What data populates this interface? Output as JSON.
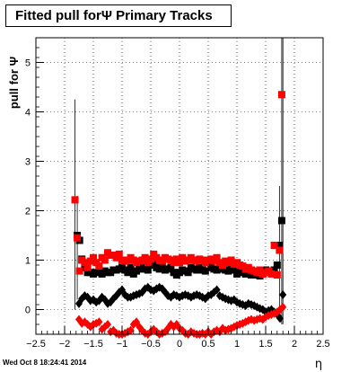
{
  "chart_data": {
    "type": "scatter",
    "title": "Fitted pull forΨ   Primary Tracks",
    "xlabel": "η",
    "ylabel": "pull for Ψ",
    "xlim": [
      -2.5,
      2.5
    ],
    "ylim": [
      -0.5,
      5.5
    ],
    "x_ticks": [
      -2.5,
      -2,
      -1.5,
      -1,
      -0.5,
      0,
      0.5,
      1,
      1.5,
      2,
      2.5
    ],
    "x_tick_labels": [
      "−2.5",
      "−2",
      "−1.5",
      "−1",
      "−0.5",
      "0",
      "0.5",
      "1",
      "1.5",
      "2",
      "2.5"
    ],
    "y_ticks": [
      0,
      1,
      2,
      3,
      4,
      5
    ],
    "y_tick_labels": [
      "0",
      "1",
      "2",
      "3",
      "4",
      "5"
    ],
    "grid": true,
    "series": [
      {
        "color": "#000000",
        "marker": "square",
        "points": [
          [
            -1.78,
            1.5
          ],
          [
            -1.74,
            1.4
          ],
          [
            -1.7,
            1.02
          ],
          [
            -1.65,
            0.85
          ],
          [
            -1.6,
            0.75
          ],
          [
            -1.55,
            0.75
          ],
          [
            -1.5,
            0.72
          ],
          [
            -1.45,
            0.75
          ],
          [
            -1.4,
            0.8
          ],
          [
            -1.35,
            0.72
          ],
          [
            -1.3,
            0.78
          ],
          [
            -1.25,
            0.75
          ],
          [
            -1.2,
            0.75
          ],
          [
            -1.15,
            0.8
          ],
          [
            -1.1,
            0.8
          ],
          [
            -1.05,
            0.82
          ],
          [
            -1.0,
            0.85
          ],
          [
            -0.95,
            0.8
          ],
          [
            -0.9,
            0.75
          ],
          [
            -0.85,
            0.85
          ],
          [
            -0.8,
            0.72
          ],
          [
            -0.75,
            0.78
          ],
          [
            -0.7,
            0.82
          ],
          [
            -0.65,
            0.85
          ],
          [
            -0.6,
            0.82
          ],
          [
            -0.55,
            0.8
          ],
          [
            -0.5,
            0.9
          ],
          [
            -0.45,
            0.92
          ],
          [
            -0.4,
            0.85
          ],
          [
            -0.35,
            0.82
          ],
          [
            -0.3,
            0.88
          ],
          [
            -0.25,
            0.8
          ],
          [
            -0.2,
            0.82
          ],
          [
            -0.15,
            0.85
          ],
          [
            -0.1,
            0.75
          ],
          [
            -0.05,
            0.7
          ],
          [
            0.0,
            0.75
          ],
          [
            0.05,
            0.8
          ],
          [
            0.1,
            0.78
          ],
          [
            0.15,
            0.75
          ],
          [
            0.2,
            0.85
          ],
          [
            0.25,
            0.82
          ],
          [
            0.3,
            0.8
          ],
          [
            0.35,
            0.85
          ],
          [
            0.4,
            0.8
          ],
          [
            0.45,
            0.78
          ],
          [
            0.5,
            0.95
          ],
          [
            0.55,
            0.85
          ],
          [
            0.6,
            0.82
          ],
          [
            0.65,
            0.8
          ],
          [
            0.7,
            0.85
          ],
          [
            0.75,
            0.82
          ],
          [
            0.8,
            0.8
          ],
          [
            0.85,
            0.78
          ],
          [
            0.9,
            0.85
          ],
          [
            0.95,
            0.8
          ],
          [
            1.0,
            0.72
          ],
          [
            1.05,
            0.8
          ],
          [
            1.1,
            0.75
          ],
          [
            1.15,
            0.72
          ],
          [
            1.2,
            0.78
          ],
          [
            1.25,
            0.7
          ],
          [
            1.3,
            0.72
          ],
          [
            1.35,
            0.7
          ],
          [
            1.4,
            0.68
          ],
          [
            1.45,
            0.72
          ],
          [
            1.5,
            0.8
          ],
          [
            1.55,
            0.78
          ],
          [
            1.6,
            0.75
          ],
          [
            1.65,
            0.8
          ],
          [
            1.7,
            0.9
          ],
          [
            1.74,
            1.3
          ],
          [
            1.78,
            1.8
          ]
        ]
      },
      {
        "color": "#000000",
        "marker": "diamond",
        "points": [
          [
            -1.75,
            0.12
          ],
          [
            -1.7,
            0.22
          ],
          [
            -1.65,
            0.28
          ],
          [
            -1.6,
            0.25
          ],
          [
            -1.55,
            0.18
          ],
          [
            -1.5,
            0.2
          ],
          [
            -1.45,
            0.15
          ],
          [
            -1.4,
            0.18
          ],
          [
            -1.35,
            0.25
          ],
          [
            -1.3,
            0.2
          ],
          [
            -1.25,
            0.12
          ],
          [
            -1.2,
            0.15
          ],
          [
            -1.15,
            0.22
          ],
          [
            -1.1,
            0.28
          ],
          [
            -1.05,
            0.35
          ],
          [
            -1.0,
            0.4
          ],
          [
            -0.95,
            0.3
          ],
          [
            -0.9,
            0.25
          ],
          [
            -0.85,
            0.25
          ],
          [
            -0.8,
            0.28
          ],
          [
            -0.75,
            0.3
          ],
          [
            -0.7,
            0.32
          ],
          [
            -0.65,
            0.35
          ],
          [
            -0.6,
            0.42
          ],
          [
            -0.55,
            0.45
          ],
          [
            -0.5,
            0.4
          ],
          [
            -0.45,
            0.38
          ],
          [
            -0.4,
            0.42
          ],
          [
            -0.35,
            0.45
          ],
          [
            -0.3,
            0.42
          ],
          [
            -0.25,
            0.35
          ],
          [
            -0.2,
            0.28
          ],
          [
            -0.15,
            0.25
          ],
          [
            -0.1,
            0.3
          ],
          [
            -0.05,
            0.28
          ],
          [
            0.0,
            0.25
          ],
          [
            0.05,
            0.28
          ],
          [
            0.1,
            0.3
          ],
          [
            0.15,
            0.28
          ],
          [
            0.2,
            0.25
          ],
          [
            0.25,
            0.28
          ],
          [
            0.3,
            0.3
          ],
          [
            0.35,
            0.28
          ],
          [
            0.4,
            0.25
          ],
          [
            0.45,
            0.22
          ],
          [
            0.5,
            0.28
          ],
          [
            0.55,
            0.3
          ],
          [
            0.6,
            0.35
          ],
          [
            0.65,
            0.4
          ],
          [
            0.7,
            0.28
          ],
          [
            0.75,
            0.25
          ],
          [
            0.8,
            0.22
          ],
          [
            0.85,
            0.2
          ],
          [
            0.9,
            0.18
          ],
          [
            0.95,
            0.2
          ],
          [
            1.0,
            0.15
          ],
          [
            1.05,
            0.12
          ],
          [
            1.1,
            0.1
          ],
          [
            1.15,
            0.08
          ],
          [
            1.2,
            0.12
          ],
          [
            1.25,
            0.1
          ],
          [
            1.3,
            0.08
          ],
          [
            1.35,
            0.05
          ],
          [
            1.4,
            0.02
          ],
          [
            1.45,
            0.0
          ],
          [
            1.5,
            -0.05
          ],
          [
            1.55,
            -0.02
          ],
          [
            1.6,
            0.0
          ],
          [
            1.65,
            -0.05
          ],
          [
            1.7,
            -0.1
          ],
          [
            1.75,
            -0.18
          ],
          [
            1.8,
            0.3
          ]
        ]
      },
      {
        "color": "#ff0000",
        "marker": "square",
        "points": [
          [
            -1.82,
            2.22
          ],
          [
            -1.78,
            1.45
          ],
          [
            -1.74,
            0.78
          ],
          [
            -1.7,
            1.0
          ],
          [
            -1.65,
            0.95
          ],
          [
            -1.6,
            0.85
          ],
          [
            -1.55,
            0.98
          ],
          [
            -1.5,
            1.05
          ],
          [
            -1.45,
            0.95
          ],
          [
            -1.4,
            0.88
          ],
          [
            -1.35,
            1.05
          ],
          [
            -1.3,
            1.0
          ],
          [
            -1.25,
            1.15
          ],
          [
            -1.2,
            1.1
          ],
          [
            -1.15,
            1.1
          ],
          [
            -1.1,
            1.05
          ],
          [
            -1.05,
            1.12
          ],
          [
            -1.0,
            1.0
          ],
          [
            -0.95,
            0.98
          ],
          [
            -0.9,
            1.0
          ],
          [
            -0.85,
            1.05
          ],
          [
            -0.8,
            1.0
          ],
          [
            -0.75,
            0.95
          ],
          [
            -0.7,
            0.98
          ],
          [
            -0.65,
            1.0
          ],
          [
            -0.6,
            1.05
          ],
          [
            -0.55,
            0.95
          ],
          [
            -0.5,
            1.02
          ],
          [
            -0.45,
            1.12
          ],
          [
            -0.4,
            1.05
          ],
          [
            -0.35,
            1.0
          ],
          [
            -0.3,
            0.98
          ],
          [
            -0.25,
            1.05
          ],
          [
            -0.2,
            1.02
          ],
          [
            -0.15,
            1.0
          ],
          [
            -0.1,
            0.95
          ],
          [
            -0.05,
            1.02
          ],
          [
            0.0,
            0.95
          ],
          [
            0.05,
            1.05
          ],
          [
            0.1,
            0.98
          ],
          [
            0.15,
            1.0
          ],
          [
            0.2,
            1.05
          ],
          [
            0.25,
            1.0
          ],
          [
            0.3,
            0.98
          ],
          [
            0.35,
            1.02
          ],
          [
            0.4,
            1.0
          ],
          [
            0.45,
            0.95
          ],
          [
            0.5,
            1.0
          ],
          [
            0.55,
            1.02
          ],
          [
            0.6,
            0.98
          ],
          [
            0.65,
            1.05
          ],
          [
            0.7,
            0.95
          ],
          [
            0.75,
            0.9
          ],
          [
            0.8,
            0.98
          ],
          [
            0.85,
            0.95
          ],
          [
            0.9,
            1.0
          ],
          [
            0.95,
            0.92
          ],
          [
            1.0,
            0.95
          ],
          [
            1.05,
            0.9
          ],
          [
            1.1,
            0.88
          ],
          [
            1.15,
            0.82
          ],
          [
            1.2,
            0.85
          ],
          [
            1.25,
            0.8
          ],
          [
            1.3,
            0.78
          ],
          [
            1.35,
            0.75
          ],
          [
            1.4,
            0.8
          ],
          [
            1.45,
            0.72
          ],
          [
            1.5,
            0.75
          ],
          [
            1.55,
            0.78
          ],
          [
            1.6,
            0.72
          ],
          [
            1.65,
            1.3
          ],
          [
            1.7,
            0.7
          ],
          [
            1.74,
            1.2
          ],
          [
            1.78,
            4.35
          ]
        ]
      },
      {
        "color": "#ff0000",
        "marker": "diamond",
        "points": [
          [
            -1.75,
            -0.2
          ],
          [
            -1.7,
            -0.28
          ],
          [
            -1.65,
            -0.25
          ],
          [
            -1.6,
            -0.3
          ],
          [
            -1.55,
            -0.35
          ],
          [
            -1.5,
            -0.3
          ],
          [
            -1.45,
            -0.28
          ],
          [
            -1.4,
            -0.25
          ],
          [
            -1.35,
            -0.4
          ],
          [
            -1.3,
            -0.35
          ],
          [
            -1.25,
            -0.3
          ],
          [
            -1.2,
            -0.45
          ],
          [
            -1.15,
            -0.42
          ],
          [
            -1.1,
            -0.48
          ],
          [
            -1.05,
            -0.5
          ],
          [
            -1.0,
            -0.5
          ],
          [
            -0.95,
            -0.48
          ],
          [
            -0.9,
            -0.45
          ],
          [
            -0.85,
            -0.42
          ],
          [
            -0.8,
            -0.3
          ],
          [
            -0.75,
            -0.25
          ],
          [
            -0.7,
            -0.35
          ],
          [
            -0.65,
            -0.42
          ],
          [
            -0.6,
            -0.48
          ],
          [
            -0.55,
            -0.5
          ],
          [
            -0.5,
            -0.45
          ],
          [
            -0.45,
            -0.4
          ],
          [
            -0.4,
            -0.45
          ],
          [
            -0.35,
            -0.5
          ],
          [
            -0.3,
            -0.48
          ],
          [
            -0.25,
            -0.45
          ],
          [
            -0.2,
            -0.38
          ],
          [
            -0.15,
            -0.3
          ],
          [
            -0.1,
            -0.35
          ],
          [
            -0.05,
            -0.3
          ],
          [
            0.0,
            -0.38
          ],
          [
            0.05,
            -0.42
          ],
          [
            0.1,
            -0.48
          ],
          [
            0.15,
            -0.5
          ],
          [
            0.2,
            -0.45
          ],
          [
            0.25,
            -0.48
          ],
          [
            0.3,
            -0.5
          ],
          [
            0.35,
            -0.5
          ],
          [
            0.4,
            -0.48
          ],
          [
            0.45,
            -0.5
          ],
          [
            0.5,
            -0.45
          ],
          [
            0.55,
            -0.5
          ],
          [
            0.6,
            -0.45
          ],
          [
            0.65,
            -0.42
          ],
          [
            0.7,
            -0.45
          ],
          [
            0.75,
            -0.38
          ],
          [
            0.8,
            -0.42
          ],
          [
            0.85,
            -0.4
          ],
          [
            0.9,
            -0.38
          ],
          [
            0.95,
            -0.35
          ],
          [
            1.0,
            -0.32
          ],
          [
            1.05,
            -0.3
          ],
          [
            1.1,
            -0.28
          ],
          [
            1.15,
            -0.25
          ],
          [
            1.2,
            -0.22
          ],
          [
            1.25,
            -0.2
          ],
          [
            1.3,
            -0.22
          ],
          [
            1.35,
            -0.2
          ],
          [
            1.4,
            -0.18
          ],
          [
            1.45,
            -0.2
          ],
          [
            1.5,
            -0.15
          ],
          [
            1.55,
            -0.12
          ],
          [
            1.6,
            -0.1
          ],
          [
            1.65,
            -0.08
          ],
          [
            1.7,
            -0.05
          ],
          [
            1.75,
            0.0
          ],
          [
            1.8,
            0.05
          ]
        ]
      }
    ],
    "error_bars": [
      {
        "x": -1.82,
        "lo": 0.0,
        "hi": 4.25
      },
      {
        "x": -1.78,
        "lo": 0.2,
        "hi": 2.3
      },
      {
        "x": 1.74,
        "lo": 0.0,
        "hi": 2.5
      },
      {
        "x": 1.78,
        "lo": -0.3,
        "hi": 5.5
      },
      {
        "x": 1.8,
        "lo": -0.3,
        "hi": 5.5
      }
    ]
  },
  "footer": {
    "timestamp": "Wed Oct  8 18:24:41 2014"
  }
}
